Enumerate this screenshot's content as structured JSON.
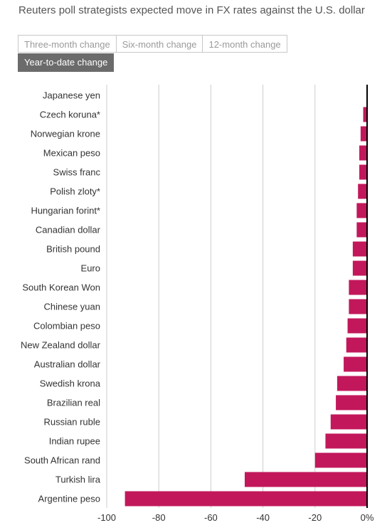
{
  "header": {
    "title": "Reuters poll strategists expected move in FX rates against the U.S. dollar"
  },
  "tabs": [
    {
      "label": "Three-month change",
      "active": false
    },
    {
      "label": "Six-month change",
      "active": false
    },
    {
      "label": "12-month change",
      "active": false
    },
    {
      "label": "Year-to-date change",
      "active": true
    }
  ],
  "colors": {
    "bar": "#c2185b",
    "grid": "#cccccc",
    "axis": "#000000"
  },
  "chart_data": {
    "type": "bar",
    "orientation": "horizontal",
    "title": "",
    "xlabel": "",
    "ylabel": "",
    "xlim": [
      -100,
      0
    ],
    "x_ticks": [
      -100,
      -80,
      -60,
      -40,
      -20,
      0
    ],
    "x_tick_labels": [
      "-100",
      "-80",
      "-60",
      "-40",
      "-20",
      "0%"
    ],
    "grid": true,
    "categories": [
      "Japanese yen",
      "Czech koruna*",
      "Norwegian krone",
      "Mexican peso",
      "Swiss franc",
      "Polish zloty*",
      "Hungarian forint*",
      "Canadian dollar",
      "British pound",
      "Euro",
      "South Korean Won",
      "Chinese yuan",
      "Colombian peso",
      "New Zealand dollar",
      "Australian dollar",
      "Swedish krona",
      "Brazilian real",
      "Russian ruble",
      "Indian rupee",
      "South African rand",
      "Turkish lira",
      "Argentine peso"
    ],
    "values": [
      0,
      -1.5,
      -2.5,
      -3,
      -3,
      -3.5,
      -4,
      -4,
      -5.5,
      -5.5,
      -7,
      -7,
      -7.5,
      -8,
      -9,
      -11.5,
      -12,
      -14,
      -16,
      -20,
      -47,
      -93
    ]
  }
}
